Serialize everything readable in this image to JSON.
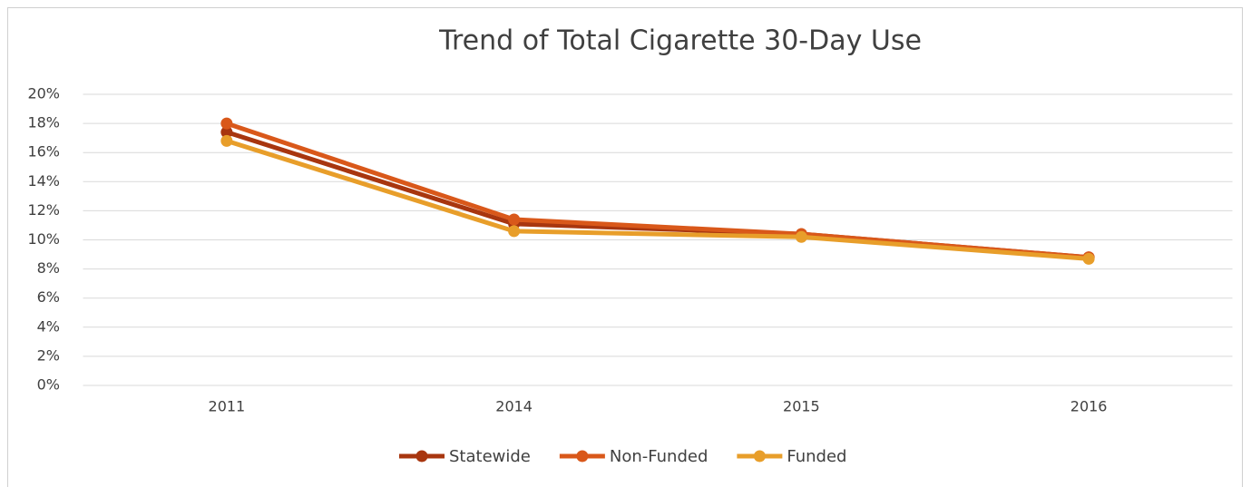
{
  "chart_data": {
    "type": "line",
    "title": "Trend of Total Cigarette 30-Day Use",
    "categories": [
      "2011",
      "2014",
      "2015",
      "2016"
    ],
    "series": [
      {
        "name": "Statewide",
        "color": "#a8360f",
        "values": [
          17.4,
          11.1,
          10.4,
          8.8
        ]
      },
      {
        "name": "Non-Funded",
        "color": "#d9581a",
        "values": [
          18.0,
          11.4,
          10.4,
          8.8
        ]
      },
      {
        "name": "Funded",
        "color": "#e89e2a",
        "values": [
          16.8,
          10.6,
          10.2,
          8.7
        ]
      }
    ],
    "ylim": [
      0,
      20
    ],
    "yticks": [
      {
        "value": 0,
        "label": "0%"
      },
      {
        "value": 2,
        "label": "2%"
      },
      {
        "value": 4,
        "label": "4%"
      },
      {
        "value": 6,
        "label": "6%"
      },
      {
        "value": 8,
        "label": "8%"
      },
      {
        "value": 10,
        "label": "10%"
      },
      {
        "value": 12,
        "label": "12%"
      },
      {
        "value": 14,
        "label": "14%"
      },
      {
        "value": 16,
        "label": "16%"
      },
      {
        "value": 18,
        "label": "18%"
      },
      {
        "value": 20,
        "label": "20%"
      }
    ],
    "grid": true,
    "legend": "bottom"
  }
}
